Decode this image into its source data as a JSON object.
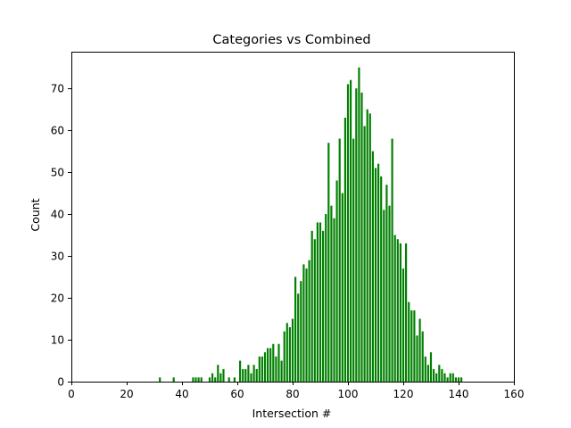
{
  "chart_data": {
    "type": "bar",
    "title": "Categories vs Combined",
    "xlabel": "Intersection #",
    "ylabel": "Count",
    "xlim": [
      0,
      160
    ],
    "ylim": [
      0,
      78.75
    ],
    "xticks": [
      "0",
      "20",
      "40",
      "60",
      "80",
      "100",
      "120",
      "140",
      "160"
    ],
    "yticks": [
      "0",
      "10",
      "20",
      "30",
      "40",
      "50",
      "60",
      "70"
    ],
    "bar_color": "#008000",
    "grid": false,
    "legend": "none",
    "bars": [
      {
        "x": 32,
        "y": 1
      },
      {
        "x": 37,
        "y": 1
      },
      {
        "x": 44,
        "y": 1
      },
      {
        "x": 45,
        "y": 1
      },
      {
        "x": 46,
        "y": 1
      },
      {
        "x": 47,
        "y": 1
      },
      {
        "x": 50,
        "y": 1
      },
      {
        "x": 51,
        "y": 2
      },
      {
        "x": 52,
        "y": 1
      },
      {
        "x": 53,
        "y": 4
      },
      {
        "x": 54,
        "y": 2
      },
      {
        "x": 55,
        "y": 3
      },
      {
        "x": 57,
        "y": 1
      },
      {
        "x": 59,
        "y": 1
      },
      {
        "x": 61,
        "y": 5
      },
      {
        "x": 62,
        "y": 3
      },
      {
        "x": 63,
        "y": 3
      },
      {
        "x": 64,
        "y": 4
      },
      {
        "x": 65,
        "y": 2
      },
      {
        "x": 66,
        "y": 4
      },
      {
        "x": 67,
        "y": 3
      },
      {
        "x": 68,
        "y": 6
      },
      {
        "x": 69,
        "y": 6
      },
      {
        "x": 70,
        "y": 7
      },
      {
        "x": 71,
        "y": 8
      },
      {
        "x": 72,
        "y": 8
      },
      {
        "x": 73,
        "y": 9
      },
      {
        "x": 74,
        "y": 6
      },
      {
        "x": 75,
        "y": 9
      },
      {
        "x": 76,
        "y": 5
      },
      {
        "x": 77,
        "y": 12
      },
      {
        "x": 78,
        "y": 14
      },
      {
        "x": 79,
        "y": 13
      },
      {
        "x": 80,
        "y": 15
      },
      {
        "x": 81,
        "y": 25
      },
      {
        "x": 82,
        "y": 21
      },
      {
        "x": 83,
        "y": 24
      },
      {
        "x": 84,
        "y": 28
      },
      {
        "x": 85,
        "y": 27
      },
      {
        "x": 86,
        "y": 29
      },
      {
        "x": 87,
        "y": 36
      },
      {
        "x": 88,
        "y": 34
      },
      {
        "x": 89,
        "y": 38
      },
      {
        "x": 90,
        "y": 38
      },
      {
        "x": 91,
        "y": 36
      },
      {
        "x": 92,
        "y": 40
      },
      {
        "x": 93,
        "y": 57
      },
      {
        "x": 94,
        "y": 42
      },
      {
        "x": 95,
        "y": 39
      },
      {
        "x": 96,
        "y": 48
      },
      {
        "x": 97,
        "y": 58
      },
      {
        "x": 98,
        "y": 45
      },
      {
        "x": 99,
        "y": 63
      },
      {
        "x": 100,
        "y": 71
      },
      {
        "x": 101,
        "y": 72
      },
      {
        "x": 102,
        "y": 58
      },
      {
        "x": 103,
        "y": 70
      },
      {
        "x": 104,
        "y": 75
      },
      {
        "x": 105,
        "y": 69
      },
      {
        "x": 106,
        "y": 61
      },
      {
        "x": 107,
        "y": 65
      },
      {
        "x": 108,
        "y": 64
      },
      {
        "x": 109,
        "y": 55
      },
      {
        "x": 110,
        "y": 51
      },
      {
        "x": 111,
        "y": 52
      },
      {
        "x": 112,
        "y": 49
      },
      {
        "x": 113,
        "y": 41
      },
      {
        "x": 114,
        "y": 47
      },
      {
        "x": 115,
        "y": 42
      },
      {
        "x": 116,
        "y": 58
      },
      {
        "x": 117,
        "y": 35
      },
      {
        "x": 118,
        "y": 34
      },
      {
        "x": 119,
        "y": 33
      },
      {
        "x": 120,
        "y": 27
      },
      {
        "x": 121,
        "y": 33
      },
      {
        "x": 122,
        "y": 19
      },
      {
        "x": 123,
        "y": 17
      },
      {
        "x": 124,
        "y": 17
      },
      {
        "x": 125,
        "y": 11
      },
      {
        "x": 126,
        "y": 15
      },
      {
        "x": 127,
        "y": 12
      },
      {
        "x": 128,
        "y": 6
      },
      {
        "x": 129,
        "y": 4
      },
      {
        "x": 130,
        "y": 7
      },
      {
        "x": 131,
        "y": 3
      },
      {
        "x": 132,
        "y": 2
      },
      {
        "x": 133,
        "y": 4
      },
      {
        "x": 134,
        "y": 3
      },
      {
        "x": 135,
        "y": 2
      },
      {
        "x": 136,
        "y": 1
      },
      {
        "x": 137,
        "y": 2
      },
      {
        "x": 138,
        "y": 2
      },
      {
        "x": 139,
        "y": 1
      },
      {
        "x": 140,
        "y": 1
      },
      {
        "x": 141,
        "y": 1
      }
    ]
  }
}
